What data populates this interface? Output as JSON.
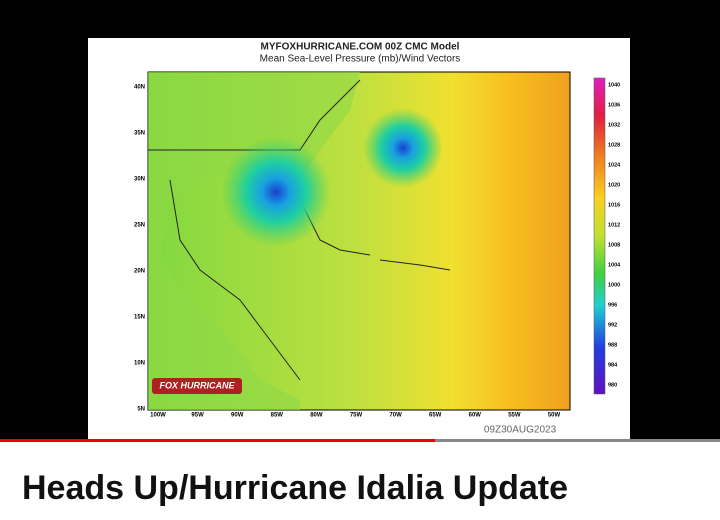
{
  "map": {
    "title": "MYFOXHURRICANE.COM 00Z CMC Model",
    "subtitle": "Mean Sea-Level Pressure (mb)/Wind Vectors",
    "lat_labels": [
      "40N",
      "35N",
      "30N",
      "25N",
      "20N",
      "15N",
      "10N",
      "5N"
    ],
    "lon_labels": [
      "100W",
      "95W",
      "90W",
      "85W",
      "80W",
      "75W",
      "70W",
      "65W",
      "60W",
      "55W",
      "50W"
    ],
    "colorbar_labels": [
      "1040",
      "1036",
      "1032",
      "1028",
      "1024",
      "1020",
      "1016",
      "1012",
      "1008",
      "1004",
      "1000",
      "996",
      "992",
      "988",
      "984",
      "980"
    ],
    "timestamp": "09Z30AUG2023",
    "logo": "FOX HURRICANE"
  },
  "video": {
    "title": "Heads Up/Hurricane Idalia Update"
  }
}
